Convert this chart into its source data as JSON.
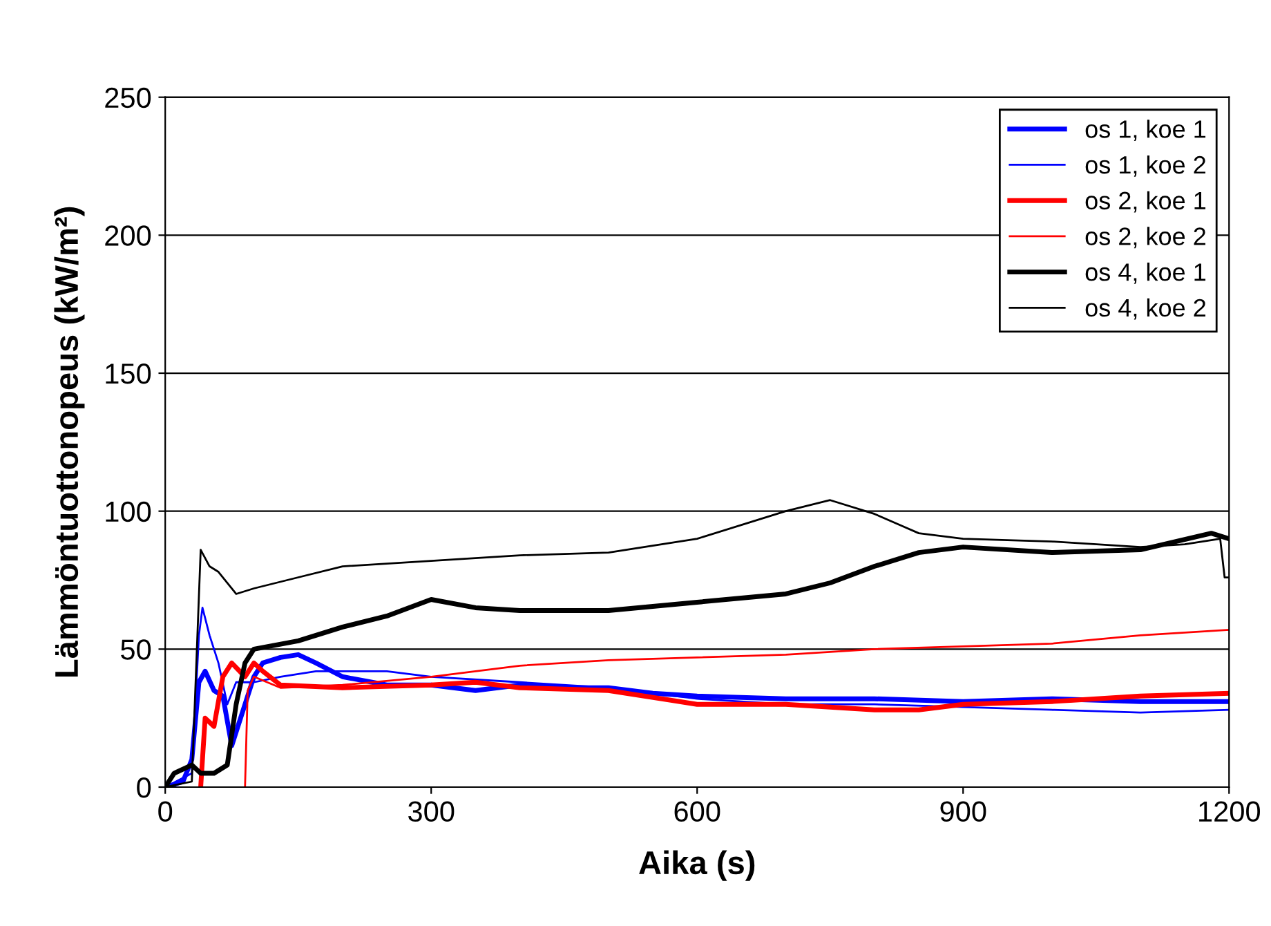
{
  "chart_data": {
    "type": "line",
    "xlabel": "Aika (s)",
    "ylabel": "Lämmöntuottonopeus (kW/m²)",
    "xlim": [
      0,
      1200
    ],
    "xticks": [
      0,
      300,
      600,
      900,
      1200
    ],
    "ylim": [
      0,
      250
    ],
    "yticks": [
      0,
      50,
      100,
      150,
      200,
      250
    ],
    "grid": "y",
    "legend": "top right",
    "line_style": "solid",
    "marker": "none",
    "series": [
      {
        "name": "os 1, koe 1",
        "color": "#0000ff",
        "x": [
          0,
          20,
          30,
          38,
          45,
          55,
          65,
          75,
          85,
          100,
          110,
          130,
          150,
          170,
          200,
          250,
          300,
          350,
          400,
          450,
          500,
          550,
          600,
          700,
          800,
          900,
          1000,
          1100,
          1200
        ],
        "values": [
          0,
          2,
          10,
          38,
          42,
          35,
          33,
          15,
          25,
          40,
          45,
          47,
          48,
          45,
          40,
          37,
          37,
          35,
          37,
          36,
          36,
          34,
          33,
          32,
          32,
          31,
          32,
          31,
          31
        ]
      },
      {
        "name": "os 1, koe 2",
        "color": "#0000ff",
        "x": [
          0,
          30,
          38,
          42,
          50,
          60,
          70,
          80,
          100,
          130,
          170,
          250,
          300,
          400,
          500,
          600,
          700,
          800,
          900,
          1000,
          1100,
          1200
        ],
        "values": [
          0,
          5,
          55,
          65,
          55,
          45,
          30,
          38,
          38,
          40,
          42,
          42,
          40,
          38,
          36,
          32,
          30,
          30,
          29,
          28,
          27,
          28
        ]
      },
      {
        "name": "os 2, koe 1",
        "color": "#ff0000",
        "x": [
          40,
          45,
          55,
          65,
          75,
          90,
          100,
          110,
          130,
          200,
          300,
          350,
          400,
          500,
          600,
          700,
          800,
          850,
          900,
          1000,
          1100,
          1200
        ],
        "values": [
          0,
          25,
          22,
          40,
          45,
          40,
          45,
          42,
          37,
          36,
          37,
          38,
          36,
          35,
          30,
          30,
          28,
          28,
          30,
          31,
          33,
          34
        ]
      },
      {
        "name": "os 2, koe 2",
        "color": "#ff0000",
        "x": [
          90,
          93,
          100,
          130,
          200,
          300,
          400,
          500,
          600,
          700,
          800,
          900,
          1000,
          1100,
          1200
        ],
        "values": [
          0,
          35,
          40,
          36,
          37,
          40,
          44,
          46,
          47,
          48,
          50,
          51,
          52,
          55,
          57
        ]
      },
      {
        "name": "os 4, koe 1",
        "color": "#000000",
        "x": [
          0,
          10,
          30,
          40,
          55,
          70,
          80,
          90,
          100,
          150,
          200,
          250,
          300,
          350,
          400,
          500,
          600,
          700,
          750,
          800,
          850,
          900,
          1000,
          1100,
          1180,
          1200
        ],
        "values": [
          0,
          5,
          8,
          5,
          5,
          8,
          30,
          45,
          50,
          53,
          58,
          62,
          68,
          65,
          64,
          64,
          67,
          70,
          74,
          80,
          85,
          87,
          85,
          86,
          92,
          90
        ]
      },
      {
        "name": "os 4, koe 2",
        "color": "#000000",
        "x": [
          0,
          30,
          40,
          50,
          60,
          80,
          100,
          150,
          200,
          300,
          400,
          500,
          600,
          650,
          700,
          750,
          800,
          850,
          900,
          1000,
          1100,
          1150,
          1190,
          1195,
          1200
        ],
        "values": [
          0,
          2,
          86,
          80,
          78,
          70,
          72,
          76,
          80,
          82,
          84,
          85,
          90,
          95,
          100,
          104,
          99,
          92,
          90,
          89,
          87,
          88,
          90,
          76,
          76
        ]
      }
    ]
  }
}
